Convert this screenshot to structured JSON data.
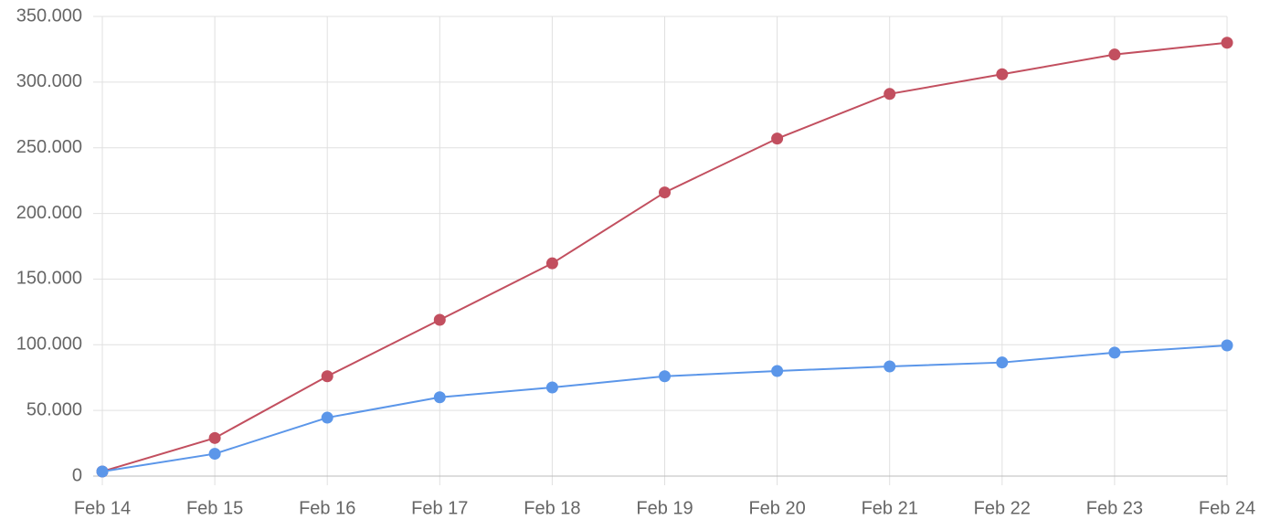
{
  "chart_data": {
    "type": "line",
    "categories": [
      "Feb 14",
      "Feb 15",
      "Feb 16",
      "Feb 17",
      "Feb 18",
      "Feb 19",
      "Feb 20",
      "Feb 21",
      "Feb 22",
      "Feb 23",
      "Feb 24"
    ],
    "series": [
      {
        "color": "#c24f5f",
        "values": [
          3500,
          29000,
          76000,
          119000,
          162000,
          216000,
          257000,
          291000,
          306000,
          321000,
          330000
        ]
      },
      {
        "color": "#5b96e9",
        "values": [
          3500,
          17000,
          44500,
          60000,
          67500,
          76000,
          80000,
          83500,
          86500,
          94000,
          99500
        ]
      }
    ],
    "ylim": [
      0,
      350000
    ],
    "yticks": [
      0,
      {
        "value": 50000,
        "label": "50.000"
      },
      {
        "value": 100000,
        "label": "100.000"
      },
      {
        "value": 150000,
        "label": "150.000"
      },
      {
        "value": 200000,
        "label": "200.000"
      },
      {
        "value": 250000,
        "label": "250.000"
      },
      {
        "value": 300000,
        "label": "300.000"
      },
      {
        "value": 350000,
        "label": "350.000"
      }
    ],
    "grid": true
  }
}
